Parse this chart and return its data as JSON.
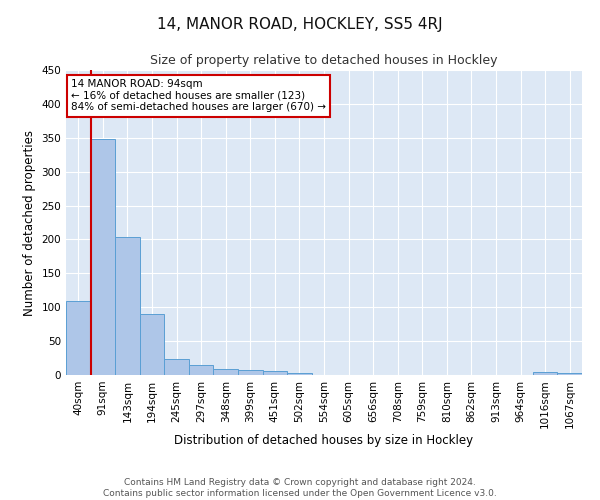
{
  "title": "14, MANOR ROAD, HOCKLEY, SS5 4RJ",
  "subtitle": "Size of property relative to detached houses in Hockley",
  "xlabel": "Distribution of detached houses by size in Hockley",
  "ylabel": "Number of detached properties",
  "footer_line1": "Contains HM Land Registry data © Crown copyright and database right 2024.",
  "footer_line2": "Contains public sector information licensed under the Open Government Licence v3.0.",
  "bar_labels": [
    "40sqm",
    "91sqm",
    "143sqm",
    "194sqm",
    "245sqm",
    "297sqm",
    "348sqm",
    "399sqm",
    "451sqm",
    "502sqm",
    "554sqm",
    "605sqm",
    "656sqm",
    "708sqm",
    "759sqm",
    "810sqm",
    "862sqm",
    "913sqm",
    "964sqm",
    "1016sqm",
    "1067sqm"
  ],
  "bar_values": [
    109,
    348,
    204,
    90,
    24,
    15,
    9,
    8,
    6,
    3,
    0,
    0,
    0,
    0,
    0,
    0,
    0,
    0,
    0,
    4,
    3
  ],
  "bar_color": "#aec6e8",
  "bar_edge_color": "#5a9fd4",
  "background_color": "#dde8f5",
  "vline_x": 0.5,
  "vline_color": "#cc0000",
  "annotation_text": "14 MANOR ROAD: 94sqm\n← 16% of detached houses are smaller (123)\n84% of semi-detached houses are larger (670) →",
  "annotation_box_color": "#ffffff",
  "annotation_box_edge_color": "#cc0000",
  "ylim": [
    0,
    450
  ],
  "yticks": [
    0,
    50,
    100,
    150,
    200,
    250,
    300,
    350,
    400,
    450
  ],
  "title_fontsize": 11,
  "subtitle_fontsize": 9,
  "xlabel_fontsize": 8.5,
  "ylabel_fontsize": 8.5,
  "tick_fontsize": 7.5,
  "footer_fontsize": 6.5
}
